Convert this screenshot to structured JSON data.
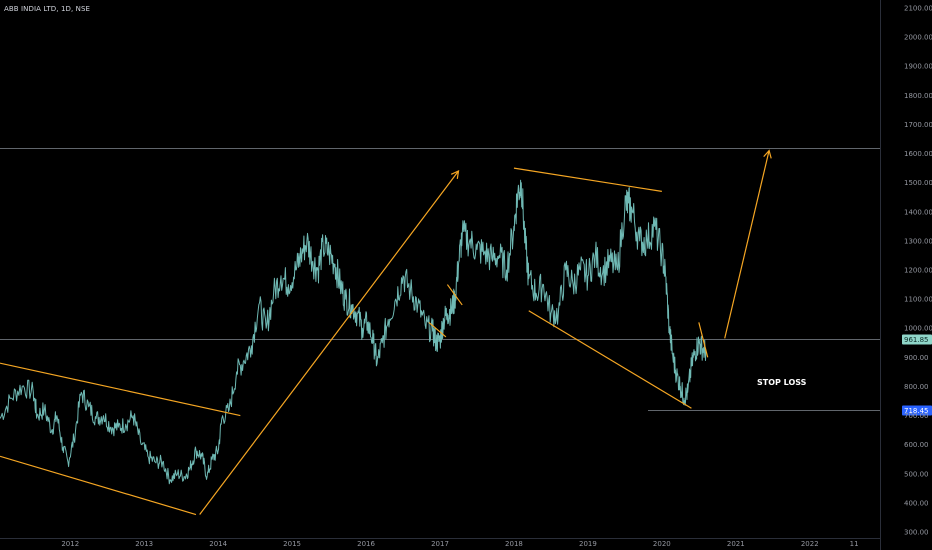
{
  "header": {
    "symbol": "ABB INDIA LTD, 1D, NSE"
  },
  "colors": {
    "background": "#000000",
    "price_line": "#6fb9b4",
    "trendline": "#f5a623",
    "level_line": "#9aa0aa",
    "current_price_badge": "#8fd6c9",
    "stop_loss_badge": "#2962ff",
    "axis_text": "#9598a1"
  },
  "annotations": {
    "stop_loss": "STOP LOSS"
  },
  "chart_data": {
    "type": "line",
    "title": "ABB INDIA LTD, 1D, NSE",
    "xlabel": "",
    "ylabel": "",
    "y_axis_side": "right",
    "ylim": [
      300,
      2100
    ],
    "y_ticks": [
      "2100.00",
      "2000.00",
      "1900.00",
      "1800.00",
      "1700.00",
      "1600.00",
      "1500.00",
      "1400.00",
      "1300.00",
      "1200.00",
      "1100.00",
      "1000.00",
      "900.00",
      "800.00",
      "700.00",
      "600.00",
      "500.00",
      "400.00",
      "300.00"
    ],
    "x_ticks": [
      {
        "label": "2012",
        "t": 2012.0
      },
      {
        "label": "2013",
        "t": 2013.0
      },
      {
        "label": "2014",
        "t": 2014.0
      },
      {
        "label": "2015",
        "t": 2015.0
      },
      {
        "label": "2016",
        "t": 2016.0
      },
      {
        "label": "2017",
        "t": 2017.0
      },
      {
        "label": "2018",
        "t": 2018.0
      },
      {
        "label": "2019",
        "t": 2019.0
      },
      {
        "label": "2020",
        "t": 2020.0
      },
      {
        "label": "2021",
        "t": 2021.0
      },
      {
        "label": "2022",
        "t": 2022.0
      },
      {
        "label": "11",
        "t": 2022.6
      }
    ],
    "xlim": [
      2011.05,
      2022.95
    ],
    "series": [
      {
        "x": [
          2011.05,
          2011.2,
          2011.35,
          2011.5,
          2011.55,
          2011.65,
          2011.75,
          2011.82,
          2011.9,
          2011.97,
          2012.05,
          2012.15,
          2012.25,
          2012.35,
          2012.45,
          2012.55,
          2012.65,
          2012.75,
          2012.85,
          2012.95,
          2013.05,
          2013.15,
          2013.25,
          2013.35,
          2013.45,
          2013.55,
          2013.62,
          2013.7,
          2013.78,
          2013.85,
          2013.92,
          2014.0,
          2014.05,
          2014.15,
          2014.25,
          2014.35,
          2014.45,
          2014.55,
          2014.65,
          2014.75,
          2014.85,
          2014.95,
          2015.05,
          2015.12,
          2015.2,
          2015.28,
          2015.35,
          2015.42,
          2015.5,
          2015.58,
          2015.65,
          2015.72,
          2015.8,
          2015.88,
          2015.95,
          2016.02,
          2016.1,
          2016.15,
          2016.22,
          2016.3,
          2016.4,
          2016.5,
          2016.6,
          2016.7,
          2016.8,
          2016.9,
          2016.95,
          2017.0,
          2017.05,
          2017.1,
          2017.15,
          2017.2,
          2017.25,
          2017.3,
          2017.4,
          2017.5,
          2017.6,
          2017.7,
          2017.8,
          2017.9,
          2018.0,
          2018.05,
          2018.1,
          2018.15,
          2018.2,
          2018.3,
          2018.4,
          2018.5,
          2018.6,
          2018.7,
          2018.8,
          2018.9,
          2019.0,
          2019.1,
          2019.2,
          2019.3,
          2019.4,
          2019.5,
          2019.55,
          2019.6,
          2019.7,
          2019.8,
          2019.9,
          2020.0,
          2020.05,
          2020.1,
          2020.15,
          2020.2,
          2020.25,
          2020.3,
          2020.35,
          2020.4,
          2020.45,
          2020.5,
          2020.55,
          2020.6
        ],
        "y": [
          690,
          760,
          800,
          780,
          700,
          720,
          650,
          700,
          590,
          540,
          620,
          780,
          730,
          690,
          700,
          660,
          660,
          670,
          700,
          610,
          560,
          540,
          540,
          480,
          500,
          490,
          520,
          580,
          560,
          490,
          550,
          580,
          690,
          720,
          850,
          890,
          940,
          1080,
          1000,
          1120,
          1180,
          1150,
          1200,
          1250,
          1300,
          1230,
          1200,
          1280,
          1260,
          1220,
          1150,
          1100,
          1080,
          1050,
          1000,
          1020,
          950,
          880,
          950,
          1030,
          1100,
          1180,
          1130,
          1080,
          1010,
          990,
          950,
          960,
          1030,
          1050,
          1060,
          1100,
          1220,
          1320,
          1300,
          1270,
          1260,
          1240,
          1250,
          1200,
          1350,
          1460,
          1500,
          1300,
          1170,
          1120,
          1150,
          1050,
          1050,
          1200,
          1150,
          1200,
          1180,
          1250,
          1190,
          1230,
          1200,
          1420,
          1430,
          1400,
          1300,
          1300,
          1350,
          1260,
          1180,
          1000,
          900,
          840,
          800,
          760,
          780,
          870,
          920,
          950,
          930,
          920
        ]
      }
    ],
    "levels": [
      {
        "value": 1620,
        "label": ""
      },
      {
        "value": 961.85,
        "label": "961.85"
      },
      {
        "value": 718.45,
        "label": "718.45"
      }
    ],
    "trendlines": [
      {
        "from": [
          2011.05,
          880
        ],
        "to": [
          2014.3,
          700
        ]
      },
      {
        "from": [
          2011.05,
          560
        ],
        "to": [
          2013.7,
          360
        ]
      },
      {
        "from": [
          2013.75,
          360
        ],
        "to": [
          2017.25,
          1540
        ]
      },
      {
        "from": [
          2018.0,
          1550
        ],
        "to": [
          2020.0,
          1470
        ]
      },
      {
        "from": [
          2018.2,
          1060
        ],
        "to": [
          2020.4,
          725
        ]
      },
      {
        "from": [
          2016.85,
          1020
        ],
        "to": [
          2017.08,
          970
        ]
      },
      {
        "from": [
          2017.1,
          1150
        ],
        "to": [
          2017.3,
          1080
        ]
      },
      {
        "from": [
          2020.5,
          1020
        ],
        "to": [
          2020.62,
          900
        ]
      },
      {
        "from": [
          2020.85,
          965
        ],
        "to": [
          2021.45,
          1610
        ]
      }
    ],
    "grid": false,
    "legend": "none"
  }
}
